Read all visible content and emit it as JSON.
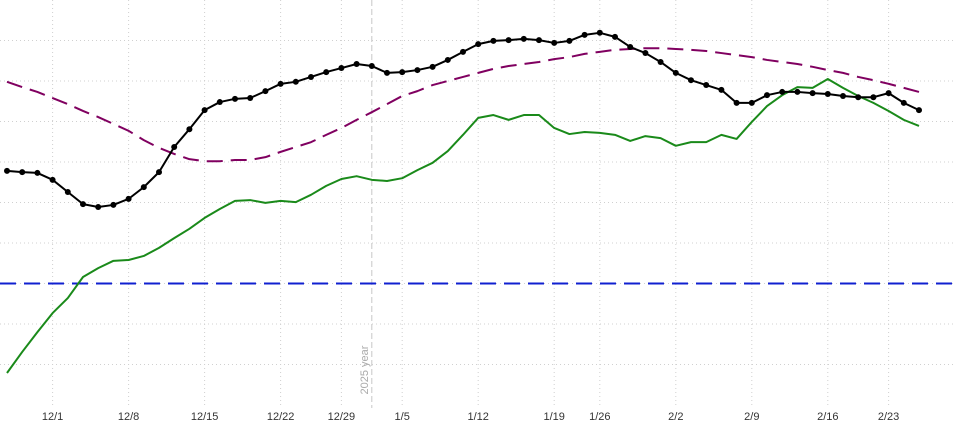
{
  "chart_data": {
    "type": "line",
    "categories": [
      null,
      null,
      null,
      "12/1",
      null,
      null,
      null,
      null,
      "12/8",
      null,
      null,
      null,
      null,
      "12/15",
      null,
      null,
      null,
      null,
      "12/22",
      null,
      null,
      null,
      "12/29",
      null,
      null,
      null,
      "1/5",
      null,
      null,
      null,
      null,
      "1/12",
      null,
      null,
      null,
      null,
      "1/19",
      null,
      null,
      "1/26",
      null,
      null,
      null,
      null,
      "2/2",
      null,
      null,
      null,
      null,
      "2/9",
      null,
      null,
      null,
      null,
      "2/16",
      null,
      null,
      null,
      "2/23",
      null,
      null
    ],
    "series": [
      {
        "color": "#800060",
        "dash": "16,8",
        "values": [
          7.98,
          7.85,
          7.73,
          7.58,
          7.43,
          7.26,
          7.11,
          6.94,
          6.77,
          6.54,
          6.35,
          6.2,
          6.07,
          6.02,
          6.02,
          6.05,
          6.05,
          6.12,
          6.25,
          6.37,
          6.49,
          6.67,
          6.84,
          7.04,
          7.23,
          7.43,
          7.63,
          7.75,
          7.9,
          8.0,
          8.1,
          8.2,
          8.3,
          8.37,
          8.42,
          8.47,
          8.54,
          8.59,
          8.67,
          8.72,
          8.77,
          8.79,
          8.81,
          8.81,
          8.79,
          8.77,
          8.74,
          8.69,
          8.64,
          8.59,
          8.52,
          8.47,
          8.42,
          8.35,
          8.27,
          8.2,
          8.1,
          8.02,
          7.93,
          7.83,
          7.73
        ]
      },
      {
        "color": "#1a8a1a",
        "values": [
          0.79,
          1.31,
          1.8,
          2.27,
          2.64,
          3.16,
          3.38,
          3.56,
          3.58,
          3.68,
          3.88,
          4.12,
          4.35,
          4.62,
          4.84,
          5.04,
          5.06,
          4.99,
          5.04,
          5.01,
          5.19,
          5.41,
          5.58,
          5.65,
          5.56,
          5.53,
          5.6,
          5.8,
          5.98,
          6.27,
          6.67,
          7.09,
          7.16,
          7.04,
          7.16,
          7.16,
          6.84,
          6.69,
          6.74,
          6.72,
          6.67,
          6.52,
          6.64,
          6.59,
          6.4,
          6.49,
          6.49,
          6.67,
          6.57,
          6.99,
          7.38,
          7.65,
          7.85,
          7.83,
          8.05,
          7.83,
          7.63,
          7.46,
          7.26,
          7.04,
          6.89
        ]
      },
      {
        "color": "#000000",
        "markers": true,
        "values": [
          5.78,
          5.75,
          5.73,
          5.56,
          5.26,
          4.96,
          4.89,
          4.94,
          5.09,
          5.38,
          5.75,
          6.37,
          6.81,
          7.28,
          7.48,
          7.56,
          7.58,
          7.75,
          7.93,
          7.98,
          8.1,
          8.22,
          8.32,
          8.42,
          8.37,
          8.2,
          8.22,
          8.27,
          8.35,
          8.52,
          8.72,
          8.91,
          8.99,
          9.01,
          9.04,
          9.01,
          8.94,
          8.99,
          9.14,
          9.19,
          9.09,
          8.84,
          8.69,
          8.47,
          8.2,
          8.02,
          7.9,
          7.78,
          7.46,
          7.46,
          7.65,
          7.73,
          7.73,
          7.7,
          7.68,
          7.63,
          7.6,
          7.6,
          7.7,
          7.46,
          7.28
        ]
      }
    ],
    "hline": {
      "value": 3,
      "color": "#1020d0"
    },
    "vline": {
      "category": 24,
      "label": "2025 year",
      "color": "#c8c8c8"
    },
    "ylim": [
      0,
      10
    ],
    "yticks": [
      1,
      2,
      3,
      4,
      5,
      6,
      7,
      8,
      9
    ],
    "grid": true
  }
}
